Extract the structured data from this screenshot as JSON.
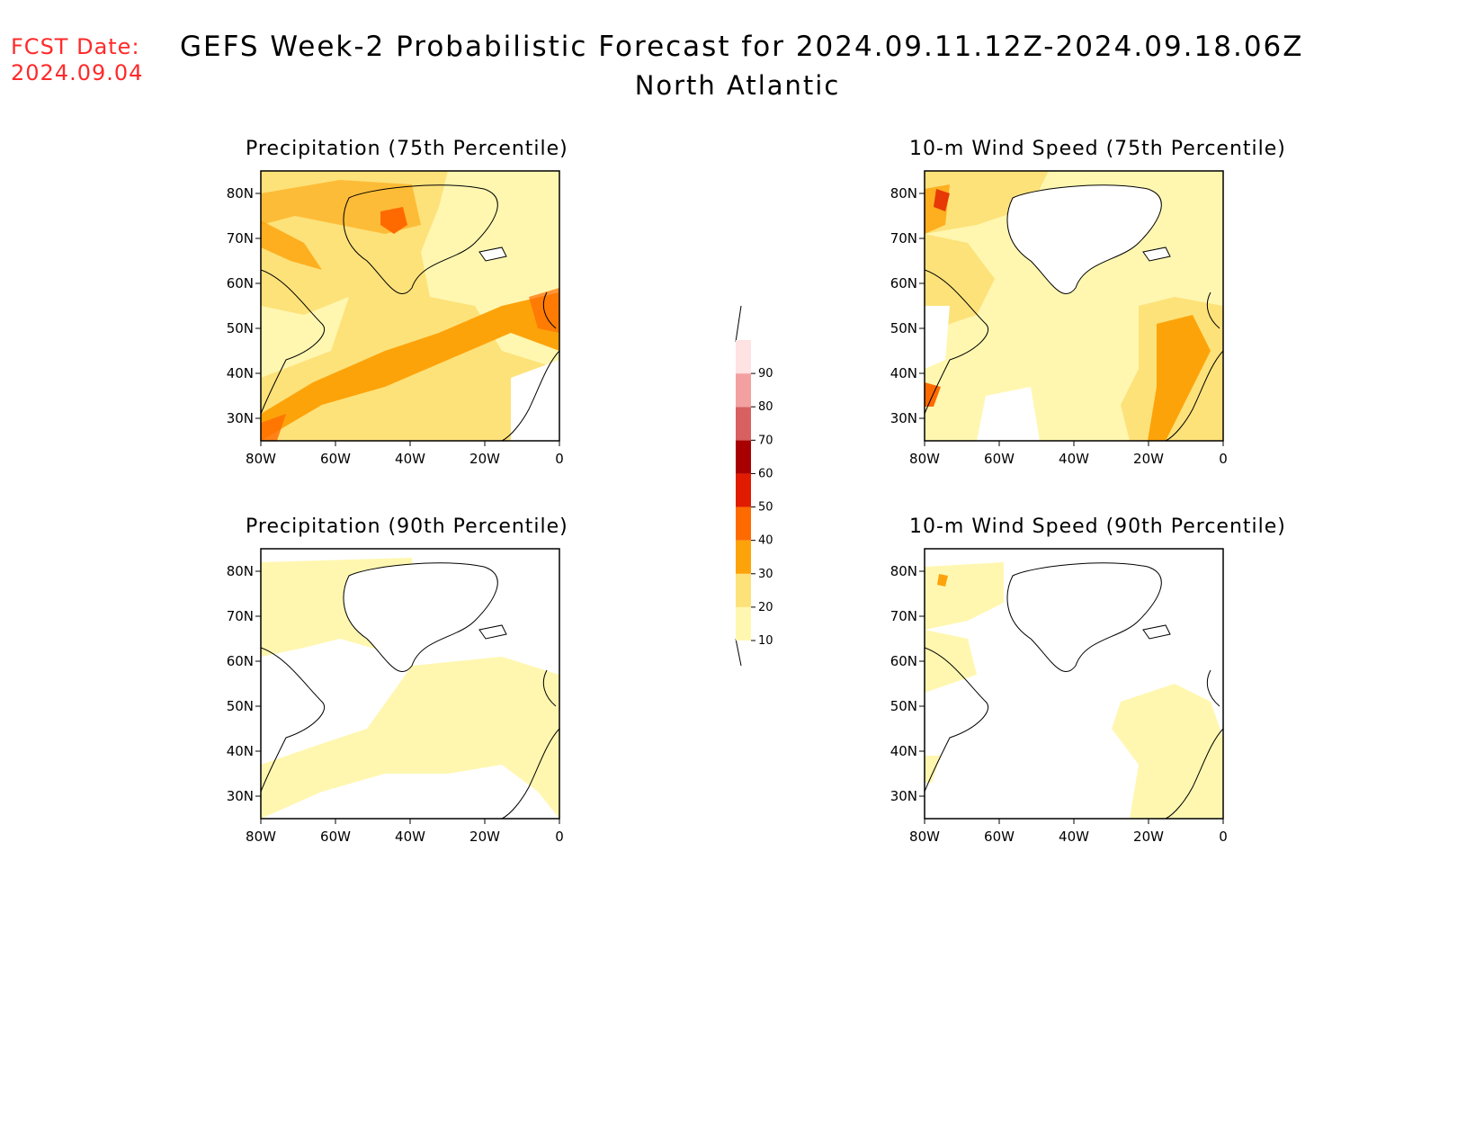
{
  "forecast_date": {
    "line1": "FCST Date:",
    "line2": "2024.09.04"
  },
  "title": {
    "main": "GEFS Week-2 Probabilistic Forecast for 2024.09.11.12Z-2024.09.18.06Z",
    "region": "North Atlantic"
  },
  "panels": [
    {
      "id": "precip75",
      "title": "Precipitation (75th Percentile)"
    },
    {
      "id": "wind75",
      "title": "10-m Wind Speed (75th Percentile)"
    },
    {
      "id": "precip90",
      "title": "Precipitation (90th Percentile)"
    },
    {
      "id": "wind90",
      "title": "10-m Wind Speed (90th Percentile)"
    }
  ],
  "axes": {
    "lat_labels": [
      "80N",
      "70N",
      "60N",
      "50N",
      "40N",
      "30N"
    ],
    "lon_labels": [
      "80W",
      "60W",
      "40W",
      "20W",
      "0"
    ]
  },
  "colorbar": {
    "levels": [
      "10",
      "20",
      "30",
      "40",
      "50",
      "60",
      "70",
      "80",
      "90"
    ],
    "colors": [
      "#fff7b0",
      "#fde27a",
      "#fda30a",
      "#ff6a00",
      "#e01b00",
      "#a80000",
      "#d86060",
      "#f3a0a0",
      "#ffe2e2"
    ]
  }
}
